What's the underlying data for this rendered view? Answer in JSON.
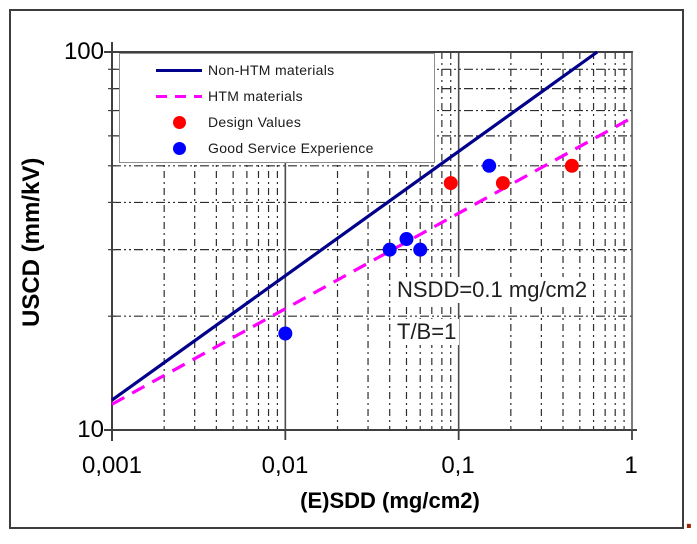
{
  "figure": {
    "stray_period": "."
  },
  "legend": {
    "items": [
      {
        "label": "Non-HTM materials",
        "swatch": "line",
        "color": "#00008B"
      },
      {
        "label": "HTM materials",
        "swatch": "dashed-line",
        "color": "#FF00FF"
      },
      {
        "label": "Design Values",
        "swatch": "dot",
        "color": "#FF0000"
      },
      {
        "label": "Good Service Experience",
        "swatch": "dot",
        "color": "#0000FF"
      }
    ]
  },
  "chart_data": {
    "type": "scatter",
    "title": "",
    "xlabel": "(E)SDD (mg/cm2)",
    "ylabel": "USCD (mm/kV)",
    "x_scale": "log",
    "y_scale": "log",
    "xlim": [
      0.001,
      1
    ],
    "ylim": [
      10,
      100
    ],
    "x_ticks": [
      0.001,
      0.01,
      0.1,
      1
    ],
    "x_tick_labels": [
      "0,001",
      "0,01",
      "0,1",
      "1"
    ],
    "y_ticks": [
      10,
      100
    ],
    "y_tick_labels": [
      "10",
      "100"
    ],
    "grid": true,
    "grid_color": "#2e2e2e",
    "legend_position": "upper-left",
    "series": [
      {
        "name": "Non-HTM materials",
        "type": "line",
        "style": "solid",
        "color": "#00008B",
        "points": [
          [
            0.001,
            12
          ],
          [
            0.63,
            100
          ]
        ]
      },
      {
        "name": "HTM materials",
        "type": "line",
        "style": "dashed",
        "color": "#FF00FF",
        "points": [
          [
            0.001,
            11.7
          ],
          [
            1,
            67
          ]
        ]
      },
      {
        "name": "Design Values",
        "type": "scatter",
        "color": "#FF0000",
        "points": [
          [
            0.09,
            45
          ],
          [
            0.18,
            45
          ],
          [
            0.45,
            50
          ]
        ]
      },
      {
        "name": "Good Service Experience",
        "type": "scatter",
        "color": "#0000FF",
        "points": [
          [
            0.01,
            18
          ],
          [
            0.04,
            30
          ],
          [
            0.05,
            32
          ],
          [
            0.06,
            30
          ],
          [
            0.15,
            50
          ]
        ]
      }
    ],
    "annotations": [
      "NSDD=0.1 mg/cm2",
      "T/B=1"
    ]
  }
}
